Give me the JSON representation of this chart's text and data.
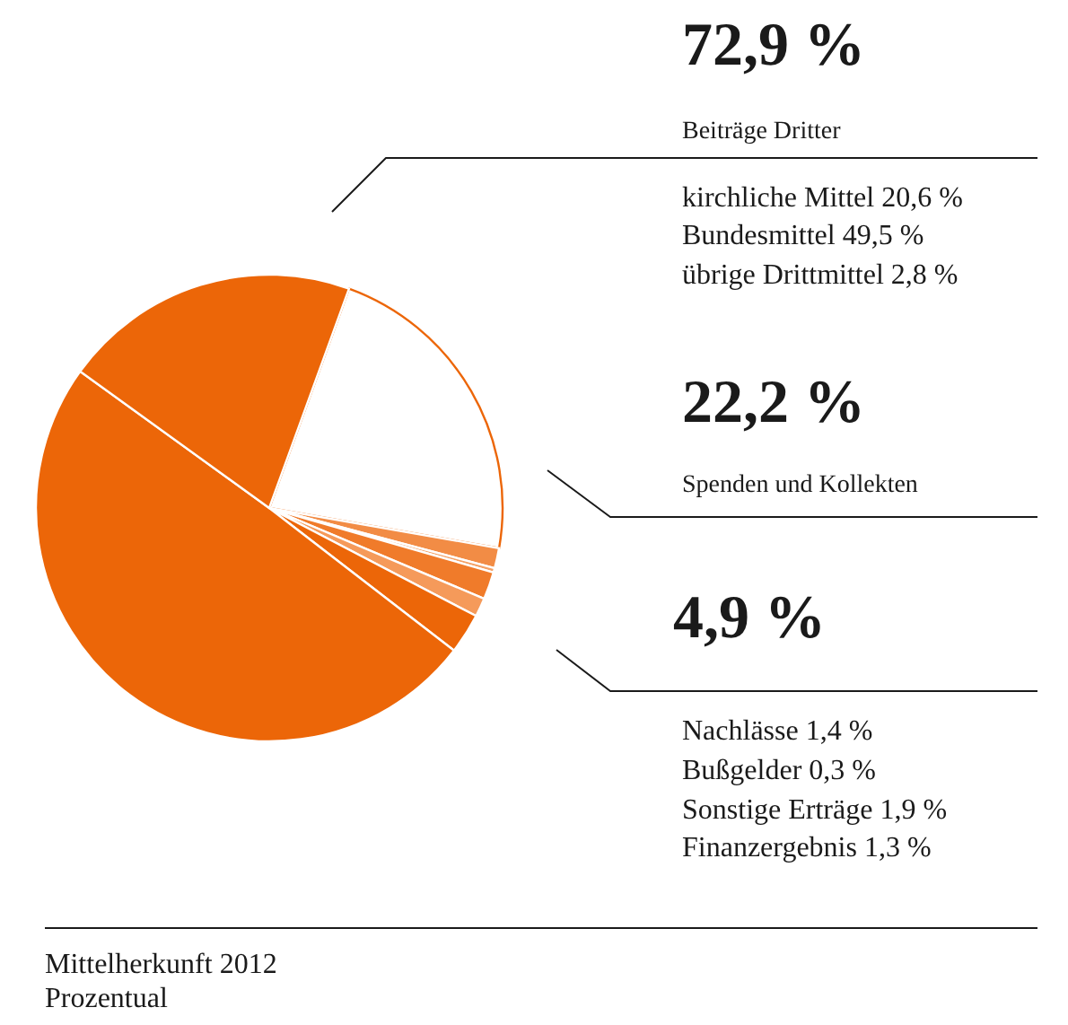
{
  "chart_data": {
    "type": "pie",
    "title": "Mittelherkunft 2012",
    "subtitle": "Prozentual",
    "categories": [
      null,
      null,
      null,
      null,
      null,
      null,
      null,
      null
    ],
    "values": [
      22.2,
      1.4,
      0.3,
      1.9,
      1.3,
      2.8,
      49.5,
      20.6
    ],
    "colors": [
      "#ffffff",
      "#f28c45",
      "#f4a064",
      "#f07b2a",
      "#f59a5a",
      "#ec6608",
      "#ec6608",
      "#ec6608"
    ],
    "annotations": [
      "72,9 %",
      "Beiträge Dritter",
      "kirchliche Mittel 20,6 %",
      "Bundesmittel 49,5 %",
      "übrige Drittmittel 2,8 %",
      "22,2 %",
      "Spenden und Kollekten",
      "4,9 %",
      "Nachlässe 1,4 %",
      "Bußgelder 0,3 %",
      "Sonstige Erträge 1,9 %",
      "Finanzergebnis 1,3 %"
    ]
  }
}
